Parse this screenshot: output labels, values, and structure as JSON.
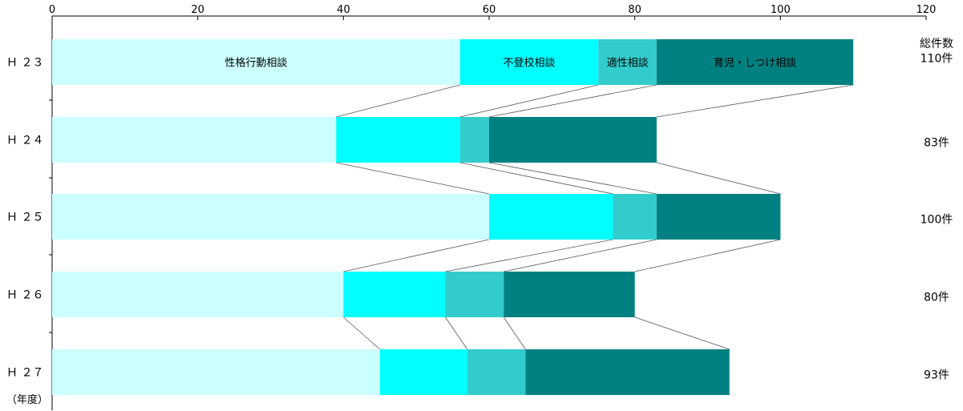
{
  "chart_data": {
    "type": "bar",
    "orientation": "horizontal",
    "stacked": true,
    "xlim": [
      0,
      120
    ],
    "x_ticks": [
      0,
      20,
      40,
      60,
      80,
      100,
      120
    ],
    "categories": [
      "Ｈ ２３",
      "Ｈ ２４",
      "Ｈ ２５",
      "Ｈ ２６",
      "Ｈ ２７"
    ],
    "category_axis_note": "（年度）",
    "series": [
      {
        "name": "性格行動相談",
        "color": "#ccffff",
        "values": [
          56,
          39,
          60,
          40,
          45
        ]
      },
      {
        "name": "不登校相談",
        "color": "#00ffff",
        "values": [
          19,
          17,
          17,
          14,
          12
        ]
      },
      {
        "name": "適性相談",
        "color": "#33cccc",
        "values": [
          8,
          4,
          6,
          8,
          8
        ]
      },
      {
        "name": "育児・しつけ相談",
        "color": "#008080",
        "values": [
          27,
          23,
          17,
          18,
          28
        ]
      }
    ],
    "totals_header": "総件数",
    "totals": [
      "110件",
      "83件",
      "100件",
      "80件",
      "93件"
    ],
    "series_lines": true,
    "grid": false
  }
}
